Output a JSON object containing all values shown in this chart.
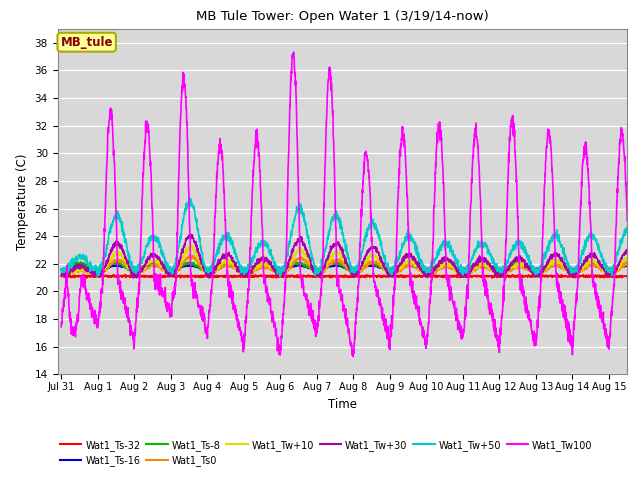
{
  "title": "MB Tule Tower: Open Water 1 (3/19/14-now)",
  "xlabel": "Time",
  "ylabel": "Temperature (C)",
  "ylim": [
    14,
    39
  ],
  "yticks": [
    14,
    16,
    18,
    20,
    22,
    24,
    26,
    28,
    30,
    32,
    34,
    36,
    38
  ],
  "xlim_days": [
    -0.1,
    15.5
  ],
  "x_tick_labels": [
    "Jul 31",
    "Aug 1",
    "Aug 2",
    "Aug 3",
    "Aug 4",
    "Aug 5",
    "Aug 6",
    "Aug 7",
    "Aug 8",
    "Aug 9",
    "Aug 10",
    "Aug 11",
    "Aug 12",
    "Aug 13",
    "Aug 14",
    "Aug 15"
  ],
  "x_tick_positions": [
    0,
    1,
    2,
    3,
    4,
    5,
    6,
    7,
    8,
    9,
    10,
    11,
    12,
    13,
    14,
    15
  ],
  "background_color": "#d8d8d8",
  "grid_color": "#ffffff",
  "series": {
    "Wat1_Ts-32": {
      "color": "#ff0000",
      "lw": 1.2
    },
    "Wat1_Ts-16": {
      "color": "#0000cc",
      "lw": 1.2
    },
    "Wat1_Ts-8": {
      "color": "#00bb00",
      "lw": 1.2
    },
    "Wat1_Ts0": {
      "color": "#ff8800",
      "lw": 1.2
    },
    "Wat1_Tw+10": {
      "color": "#dddd00",
      "lw": 1.2
    },
    "Wat1_Tw+30": {
      "color": "#aa00aa",
      "lw": 1.2
    },
    "Wat1_Tw+50": {
      "color": "#00cccc",
      "lw": 1.2
    },
    "Wat1_Tw100": {
      "color": "#ff00ff",
      "lw": 1.2
    }
  },
  "legend_box": {
    "text": "MB_tule",
    "text_color": "#880000",
    "bg_color": "#ffff99",
    "border_color": "#aaaa00"
  },
  "magenta_peaks": [
    17,
    33,
    32,
    35.5,
    30.5,
    31,
    37,
    36,
    30,
    31.5,
    32,
    31.5,
    32.5,
    31.5,
    30.5,
    31.5
  ],
  "magenta_troughs": [
    17.5,
    16.5,
    18.5,
    17,
    16,
    15.5,
    17,
    15.5,
    16,
    16,
    16.5,
    16,
    16,
    16,
    16,
    20
  ],
  "cyan_peaks": [
    22.5,
    25.5,
    24,
    26.5,
    24,
    23.5,
    26,
    25.5,
    25,
    24,
    23.5,
    23.5,
    23.5,
    24,
    24,
    24.5
  ],
  "cyan_troughs": [
    21.5,
    21.5,
    21.5,
    21.5,
    21.5,
    21.5,
    21.5,
    21.5,
    21.5,
    21.5,
    21.5,
    21.5,
    21.5,
    21.5,
    21.5,
    21.5
  ]
}
